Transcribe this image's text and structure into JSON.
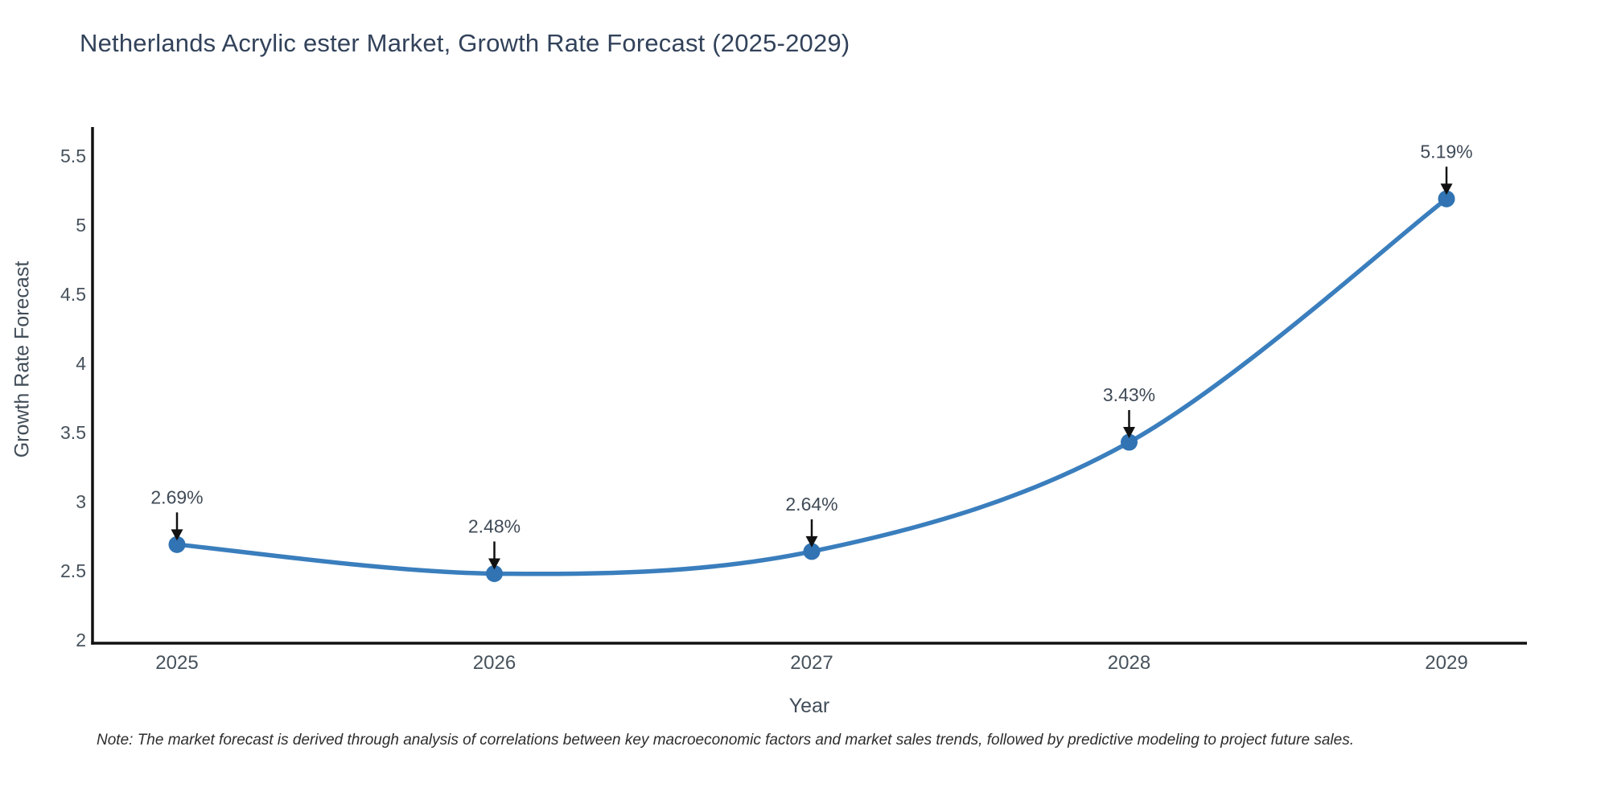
{
  "title": "Netherlands Acrylic ester Market, Growth Rate Forecast (2025-2029)",
  "note": "Note: The market forecast is derived through analysis of correlations between key macroeconomic factors and market sales trends, followed by predictive modeling to project future sales.",
  "chart_data": {
    "type": "line",
    "title": "Netherlands Acrylic ester Market, Growth Rate Forecast (2025-2029)",
    "xlabel": "Year",
    "ylabel": "Growth Rate Forecast",
    "categories": [
      "2025",
      "2026",
      "2027",
      "2028",
      "2029"
    ],
    "values": [
      2.69,
      2.48,
      2.64,
      3.43,
      5.19
    ],
    "point_labels": [
      "2.69%",
      "2.48%",
      "2.64%",
      "3.43%",
      "5.19%"
    ],
    "y_ticks": [
      2,
      2.5,
      3,
      3.5,
      4,
      4.5,
      5,
      5.5
    ],
    "y_tick_labels": [
      "2",
      "2.5",
      "3",
      "3.5",
      "4",
      "4.5",
      "5",
      "5.5"
    ],
    "ylim": [
      2,
      5.5
    ],
    "curve": "spline",
    "grid": false,
    "legend_position": "none",
    "line_color": "#3a7ebd",
    "marker_color": "#3173b3",
    "axis_color": "#111111",
    "arrow_color": "#111111",
    "tick_color": "#47525c",
    "annotation_color": "#404b57"
  }
}
